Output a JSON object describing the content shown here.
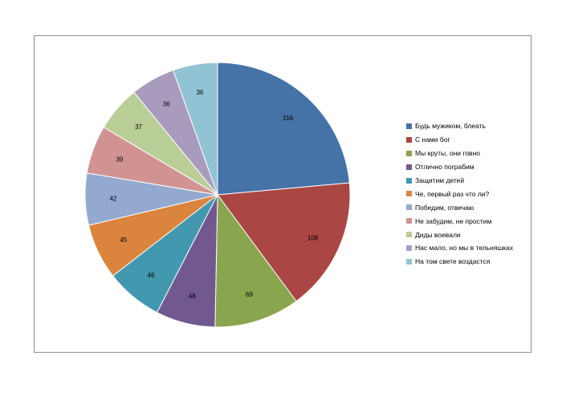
{
  "chart_data": {
    "type": "pie",
    "title": "",
    "categories": [
      "Будь мужиком, блеать",
      "С нами бог",
      "Мы круты, они говно",
      "Отлично пограбим",
      "Защитим детей",
      "Че, первый раз что ли?",
      "Победим, отвечаю",
      "Не забудим, не простим",
      "Диды воевали",
      "Нас мало, но мы в тельняшках",
      "На том свете воздастся"
    ],
    "values": [
      156,
      108,
      69,
      48,
      46,
      45,
      42,
      39,
      37,
      36,
      36
    ],
    "colors": [
      "#4572A7",
      "#AA4643",
      "#89A54E",
      "#71588F",
      "#4198AF",
      "#DB843D",
      "#93A9CF",
      "#D19392",
      "#B9CD96",
      "#A99BBD",
      "#92C3D4"
    ],
    "legend_position": "right",
    "data_labels": true
  }
}
